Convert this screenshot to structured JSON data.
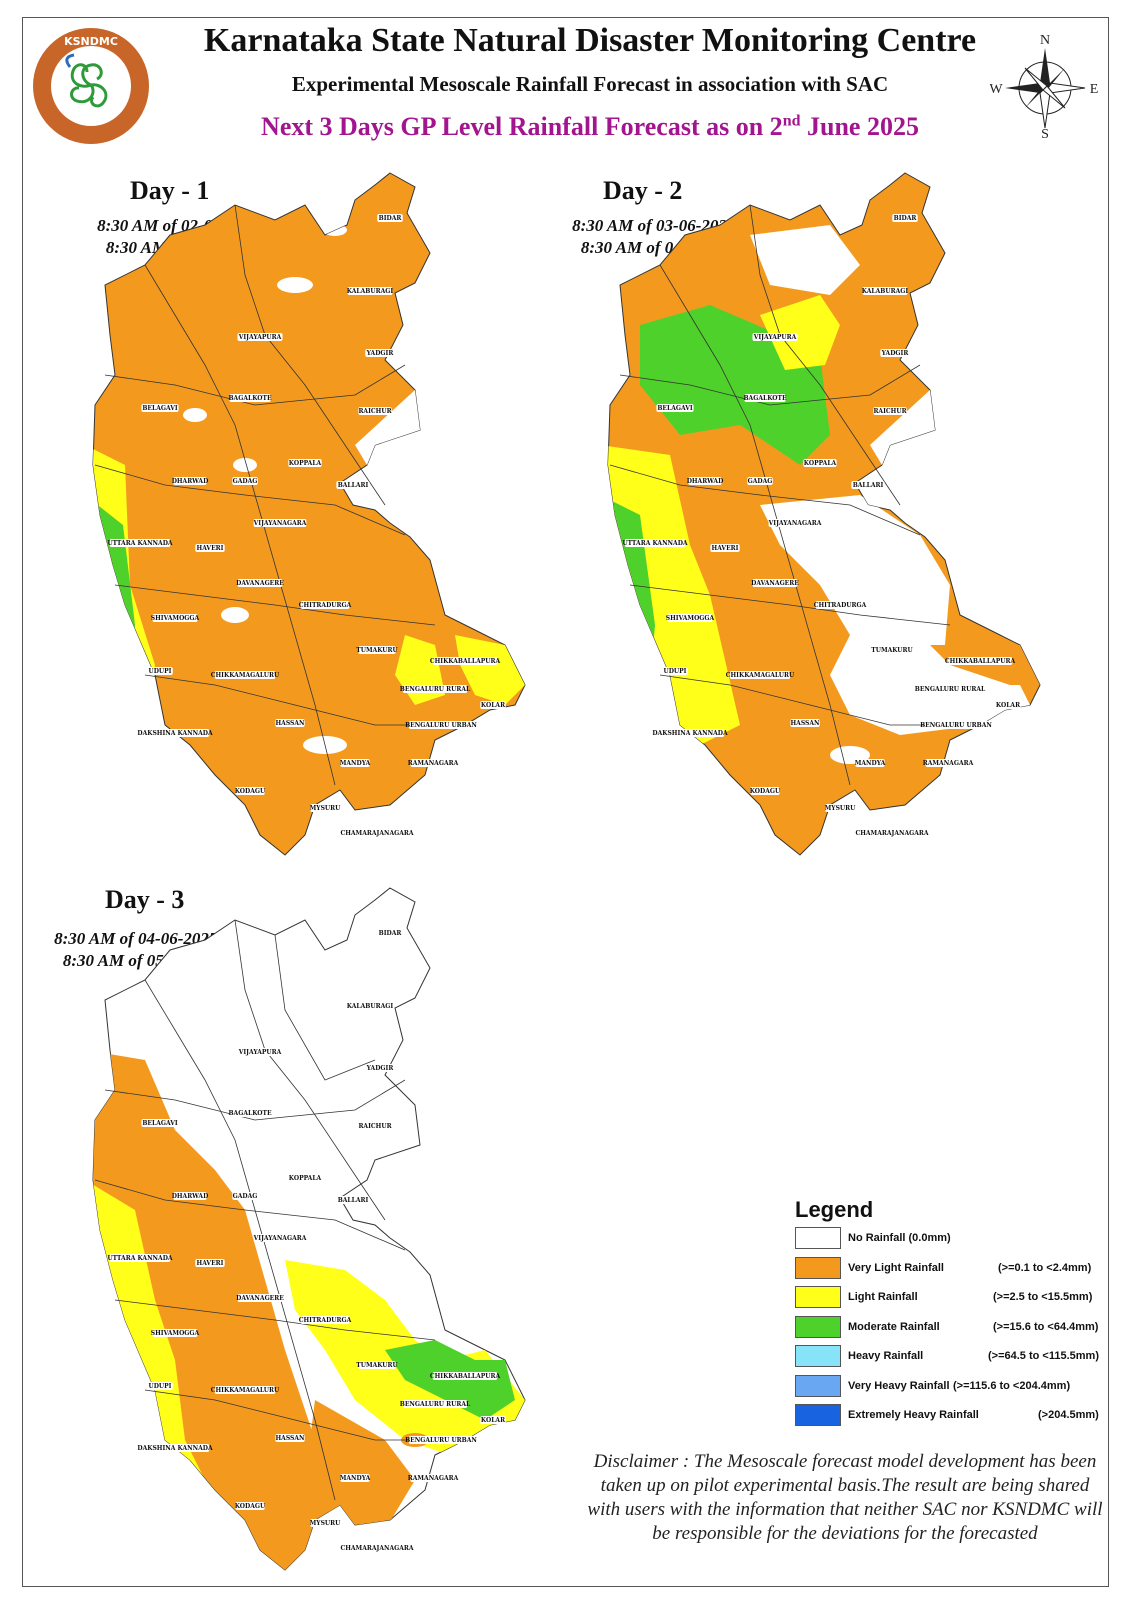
{
  "header": {
    "title": "Karnataka State Natural Disaster Monitoring Centre",
    "subtitle": "Experimental Mesoscale Rainfall Forecast in association with SAC",
    "forecast_title_prefix": "Next 3 Days GP Level Rainfall Forecast  as on 2",
    "forecast_title_sup": "nd",
    "forecast_title_suffix": " June 2025"
  },
  "logo": {
    "icon": "ksndmc-logo",
    "text": "KSNDMC"
  },
  "compass": {
    "icon": "compass-rose-icon",
    "n": "N",
    "s": "S",
    "e": "E",
    "w": "W"
  },
  "days": [
    {
      "label": "Day - 1",
      "period_line1": "8:30 AM of 02-06-2025 to",
      "period_line2": "8:30 AM of 03-06-2025",
      "districts": [
        "BIDAR",
        "KALABURAGI",
        "VIJAYAPURA",
        "YADGIR",
        "BELAGAVI",
        "BAGALKOTE",
        "RAICHUR",
        "KOPPALA",
        "DHARWAD",
        "GADAG",
        "BALLARI",
        "UTTARA KANNADA",
        "HAVERI",
        "VIJAYANAGARA",
        "DAVANAGERE",
        "CHITRADURGA",
        "SHIVAMOGGA",
        "CHIKKABALLAPURA",
        "UDUPI",
        "CHIKKAMAGALURU",
        "TUMAKURU",
        "BENGALURU RURAL",
        "KOLAR",
        "HASSAN",
        "BENGALURU URBAN",
        "DAKSHINA KANNADA",
        "MANDYA",
        "RAMANAGARA",
        "KODAGU",
        "MYSURU",
        "CHAMARAJANAGARA"
      ]
    },
    {
      "label": "Day - 2",
      "period_line1": "8:30 AM of 03-06-2025 to",
      "period_line2": "8:30 AM of 04-06-2025",
      "districts": [
        "BIDAR",
        "KALABURAGI",
        "VIJAYAPURA",
        "YADGIR",
        "BELAGAVI",
        "BAGALKOTE",
        "RAICHUR",
        "KOPPALA",
        "DHARWAD",
        "GADAG",
        "BALLARI",
        "UTTARA KANNADA",
        "HAVERI",
        "VIJAYANAGARA",
        "DAVANAGERE",
        "CHITRADURGA",
        "SHIVAMOGGA",
        "CHIKKABALLAPURA",
        "UDUPI",
        "CHIKKAMAGALURU",
        "TUMAKURU",
        "BENGALURU RURAL",
        "KOLAR",
        "HASSAN",
        "BENGALURU URBAN",
        "DAKSHINA KANNADA",
        "MANDYA",
        "RAMANAGARA",
        "KODAGU",
        "MYSURU",
        "CHAMARAJANAGARA"
      ]
    },
    {
      "label": "Day - 3",
      "period_line1": "8:30 AM of 04-06-2025 to",
      "period_line2": "8:30 AM of 05-06-2025",
      "districts": [
        "BIDAR",
        "KALABURAGI",
        "VIJAYAPURA",
        "YADGIR",
        "BELAGAVI",
        "BAGALKOTE",
        "RAICHUR",
        "KOPPALA",
        "DHARWAD",
        "GADAG",
        "BALLARI",
        "UTTARA KANNADA",
        "HAVERI",
        "VIJAYANAGARA",
        "DAVANAGERE",
        "CHITRADURGA",
        "SHIVAMOGGA",
        "CHIKKABALLAPURA",
        "UDUPI",
        "CHIKKAMAGALURU",
        "TUMAKURU",
        "BENGALURU RURAL",
        "KOLAR",
        "HASSAN",
        "BENGALURU URBAN",
        "DAKSHINA KANNADA",
        "MANDYA",
        "RAMANAGARA",
        "KODAGU",
        "MYSURU",
        "CHAMARAJANAGARA"
      ]
    }
  ],
  "legend": {
    "title": "Legend",
    "items": [
      {
        "label": "No Rainfall (0.0mm)",
        "range": "",
        "color": "#ffffff"
      },
      {
        "label": "Very Light Rainfall",
        "range": "(>=0.1 to <2.4mm)",
        "color": "#f39a1e"
      },
      {
        "label": "Light Rainfall",
        "range": "(>=2.5 to <15.5mm)",
        "color": "#ffff1a"
      },
      {
        "label": "Moderate Rainfall",
        "range": "(>=15.6 to <64.4mm)",
        "color": "#4fd12b"
      },
      {
        "label": "Heavy Rainfall",
        "range": "(>=64.5 to <115.5mm)",
        "color": "#87e3f7"
      },
      {
        "label": "Very Heavy Rainfall",
        "range": "(>=115.6 to <204.4mm)",
        "color": "#6aa7f2"
      },
      {
        "label": "Extremely Heavy Rainfall",
        "range": "(>204.5mm)",
        "color": "#1763e0"
      }
    ]
  },
  "disclaimer": "Disclaimer : The Mesoscale forecast model development has been taken up on pilot experimental basis.The result are being shared with users with the information that neither SAC nor KSNDMC will be responsible  for the deviations for the forecasted"
}
